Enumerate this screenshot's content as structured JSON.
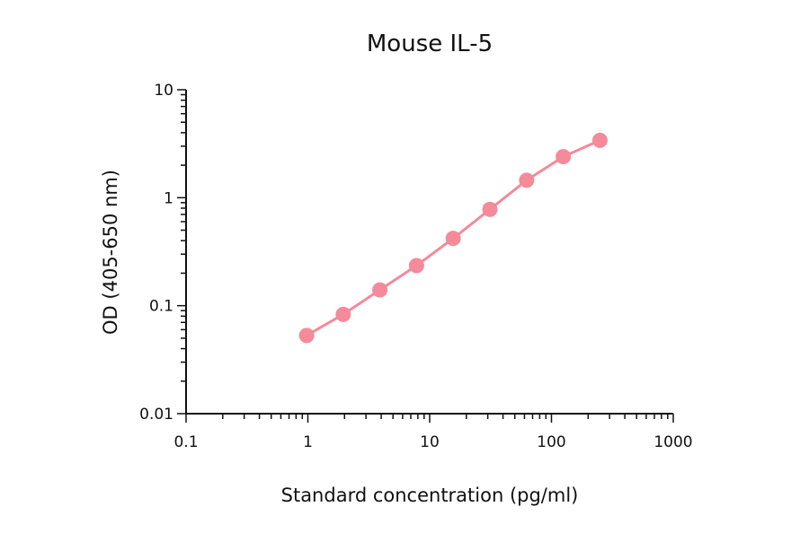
{
  "chart_data": {
    "type": "line",
    "title": "Mouse IL-5",
    "xlabel": "Standard concentration (pg/ml)",
    "ylabel": "OD (405-650 nm)",
    "x_scale": "log",
    "y_scale": "log",
    "xlim": [
      0.1,
      1000
    ],
    "ylim": [
      0.01,
      10
    ],
    "x_ticks": [
      0.1,
      1,
      10,
      100,
      1000
    ],
    "x_tick_labels": [
      "0.1",
      "1",
      "10",
      "100",
      "1000"
    ],
    "y_ticks": [
      0.01,
      0.1,
      1,
      10
    ],
    "y_tick_labels": [
      "0.01",
      "0.1",
      "1",
      "10"
    ],
    "grid": false,
    "colors": {
      "series": "#f48a9a",
      "axis": "#111111"
    },
    "series": [
      {
        "x": [
          0.977,
          1.95,
          3.9,
          7.8,
          15.6,
          31.25,
          62.5,
          125,
          250
        ],
        "y": [
          0.053,
          0.083,
          0.14,
          0.235,
          0.42,
          0.78,
          1.45,
          2.4,
          3.4
        ]
      }
    ]
  }
}
